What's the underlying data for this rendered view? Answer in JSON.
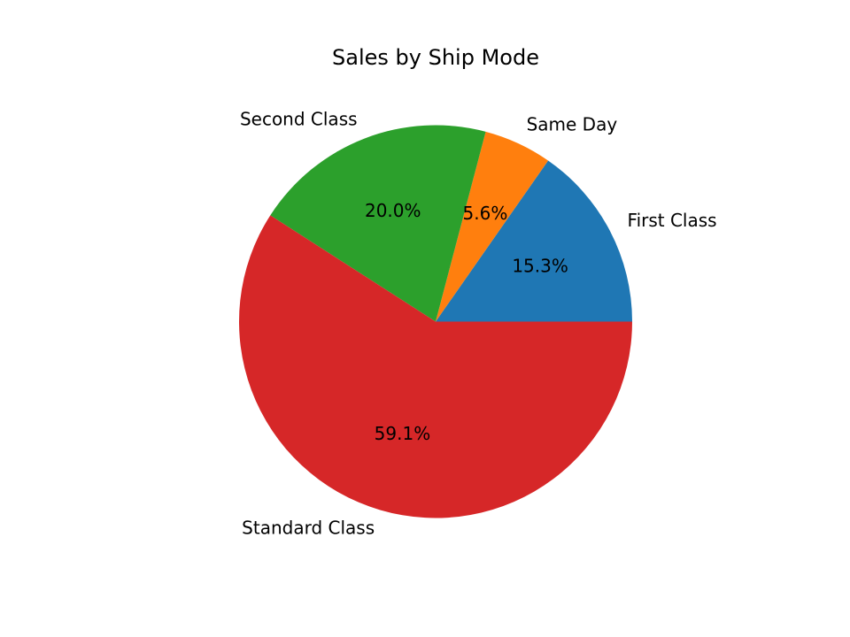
{
  "chart_data": {
    "type": "pie",
    "title": "Sales by Ship Mode",
    "start_angle_deg": 0,
    "direction": "counterclockwise",
    "slices": [
      {
        "label": "First Class",
        "value": 15.3,
        "pct_label": "15.3%",
        "color": "#1f77b4"
      },
      {
        "label": "Same Day",
        "value": 5.6,
        "pct_label": "5.6%",
        "color": "#ff7f0e"
      },
      {
        "label": "Second Class",
        "value": 20.0,
        "pct_label": "20.0%",
        "color": "#2ca02c"
      },
      {
        "label": "Standard Class",
        "value": 59.1,
        "pct_label": "59.1%",
        "color": "#d62728"
      }
    ]
  }
}
